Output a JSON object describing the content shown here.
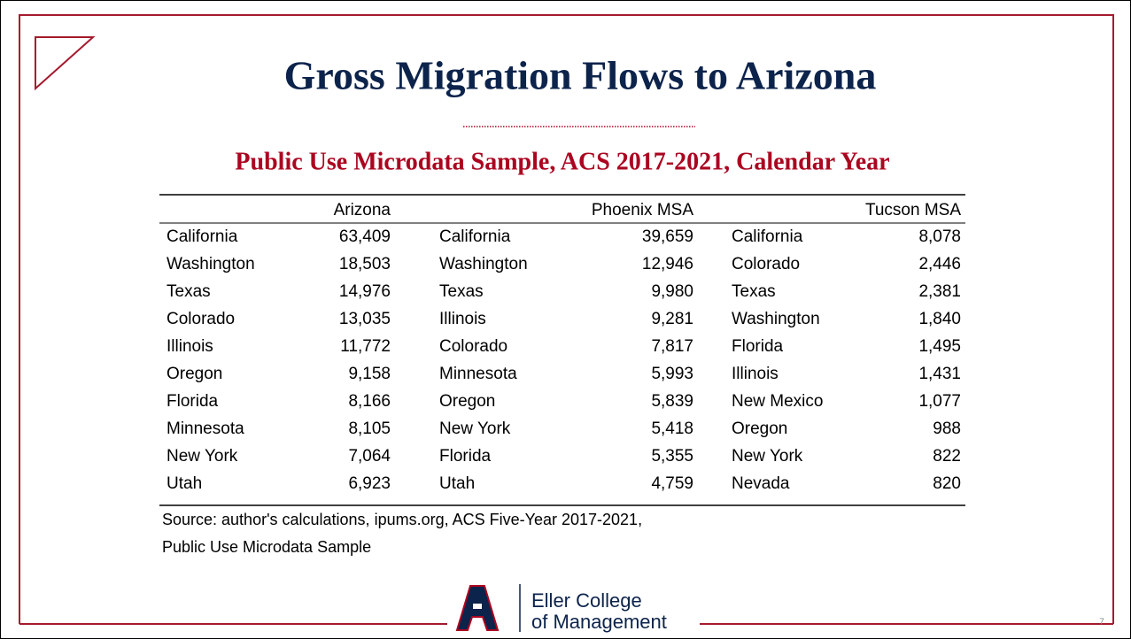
{
  "header": {
    "title": "Gross Migration Flows to Arizona",
    "subtitle": "Public Use Microdata Sample, ACS 2017-2021, Calendar Year"
  },
  "table": {
    "columns": [
      "Arizona",
      "Phoenix MSA",
      "Tucson MSA"
    ],
    "rows": [
      [
        "California",
        "63,409",
        "California",
        "39,659",
        "California",
        "8,078"
      ],
      [
        "Washington",
        "18,503",
        "Washington",
        "12,946",
        "Colorado",
        "2,446"
      ],
      [
        "Texas",
        "14,976",
        "Texas",
        "9,980",
        "Texas",
        "2,381"
      ],
      [
        "Colorado",
        "13,035",
        "Illinois",
        "9,281",
        "Washington",
        "1,840"
      ],
      [
        "Illinois",
        "11,772",
        "Colorado",
        "7,817",
        "Florida",
        "1,495"
      ],
      [
        "Oregon",
        "9,158",
        "Minnesota",
        "5,993",
        "Illinois",
        "1,431"
      ],
      [
        "Florida",
        "8,166",
        "Oregon",
        "5,839",
        "New Mexico",
        "1,077"
      ],
      [
        "Minnesota",
        "8,105",
        "New York",
        "5,418",
        "Oregon",
        "988"
      ],
      [
        "New York",
        "7,064",
        "Florida",
        "5,355",
        "New York",
        "822"
      ],
      [
        "Utah",
        "6,923",
        "Utah",
        "4,759",
        "Nevada",
        "820"
      ]
    ]
  },
  "source": [
    "Source: author's calculations, ipums.org, ACS Five-Year 2017-2021,",
    "Public Use Microdata Sample"
  ],
  "logo": [
    "Eller College",
    "of Management"
  ],
  "page_number": "7"
}
